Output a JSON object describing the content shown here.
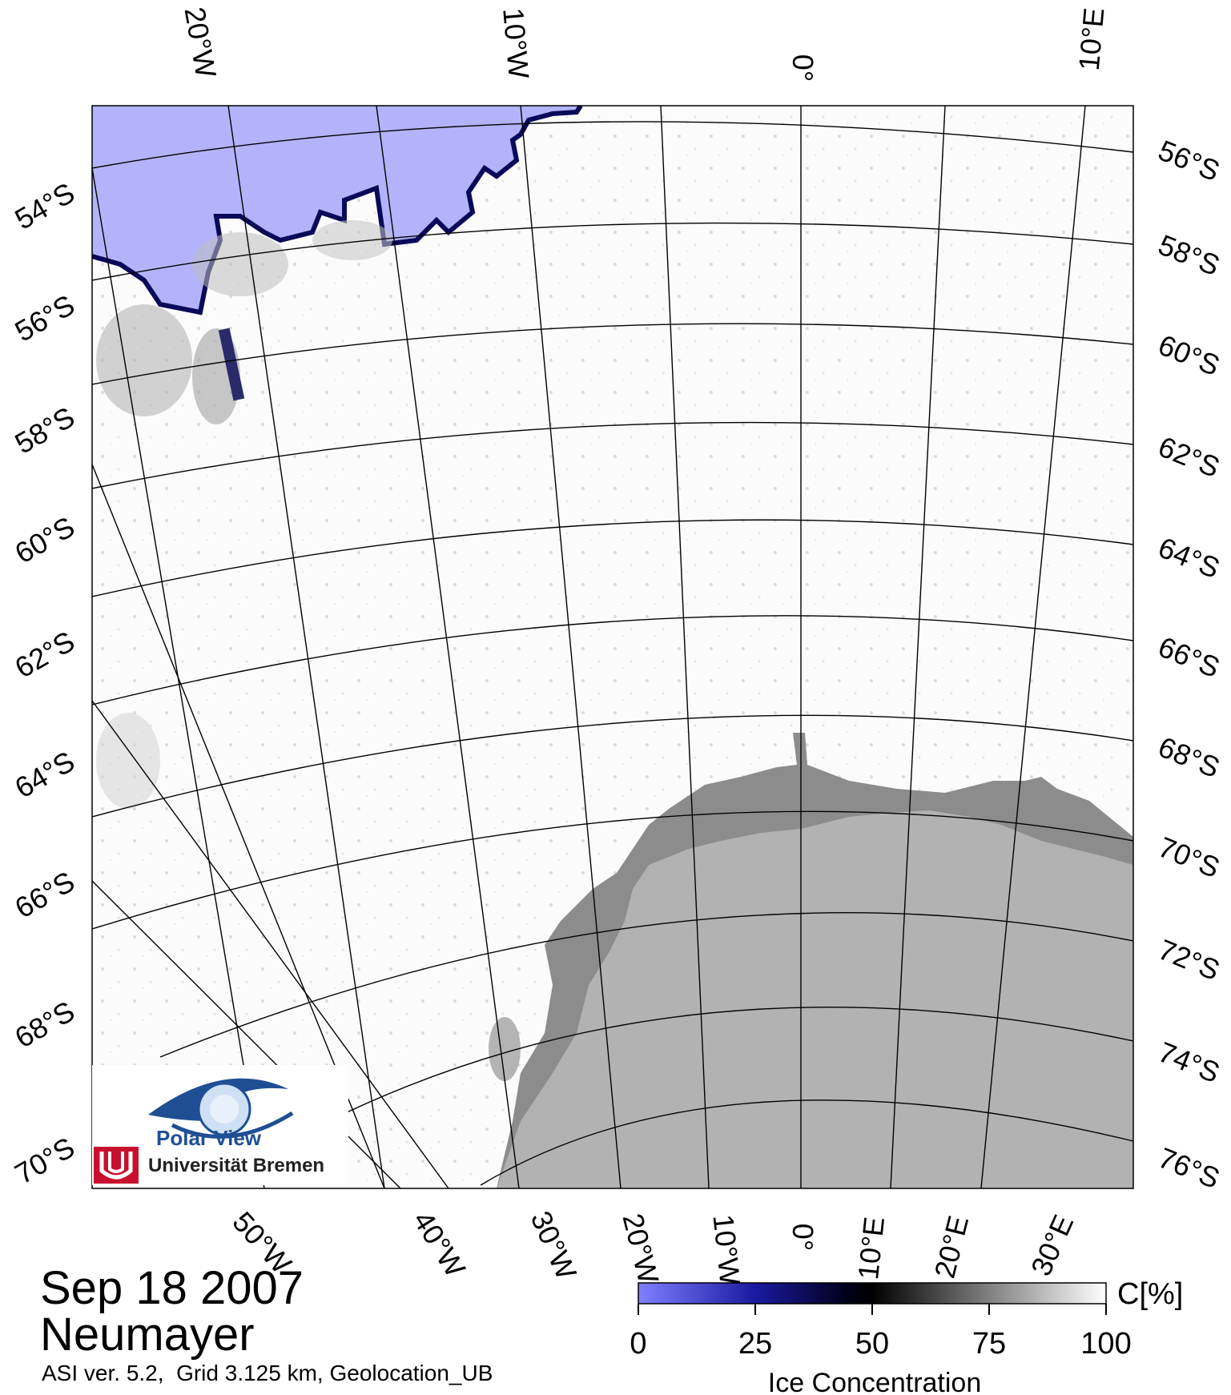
{
  "date_label": "Sep 18 2007",
  "station_label": "Neumayer",
  "meta_line": "ASI ver. 5.2,  Grid 3.125 km, Geolocation_UB",
  "logo": {
    "name": "Polar View",
    "institution": "Universität Bremen"
  },
  "colorbar": {
    "unit_label": "C[%]",
    "axis_label": "Ice Concentration",
    "ticks": [
      "0",
      "25",
      "50",
      "75",
      "100"
    ]
  },
  "latitude_labels_left": [
    "54°S",
    "56°S",
    "58°S",
    "60°S",
    "62°S",
    "64°S",
    "66°S",
    "68°S",
    "70°S"
  ],
  "latitude_labels_right": [
    "56°S",
    "58°S",
    "60°S",
    "62°S",
    "64°S",
    "66°S",
    "68°S",
    "70°S",
    "72°S",
    "74°S",
    "76°S"
  ],
  "longitude_labels_top": [
    "20°W",
    "10°W",
    "0°",
    "10°E"
  ],
  "longitude_labels_bottom": [
    "50°W",
    "40°W",
    "30°W",
    "20°W",
    "10°W",
    "0°",
    "10°E",
    "20°E",
    "30°E"
  ],
  "colors": {
    "open_water": "#b3b3fb",
    "ice_edge_dark": "#0a0a5a",
    "land": "#b2b2b2",
    "ice_shelf": "#8c8c8c"
  }
}
